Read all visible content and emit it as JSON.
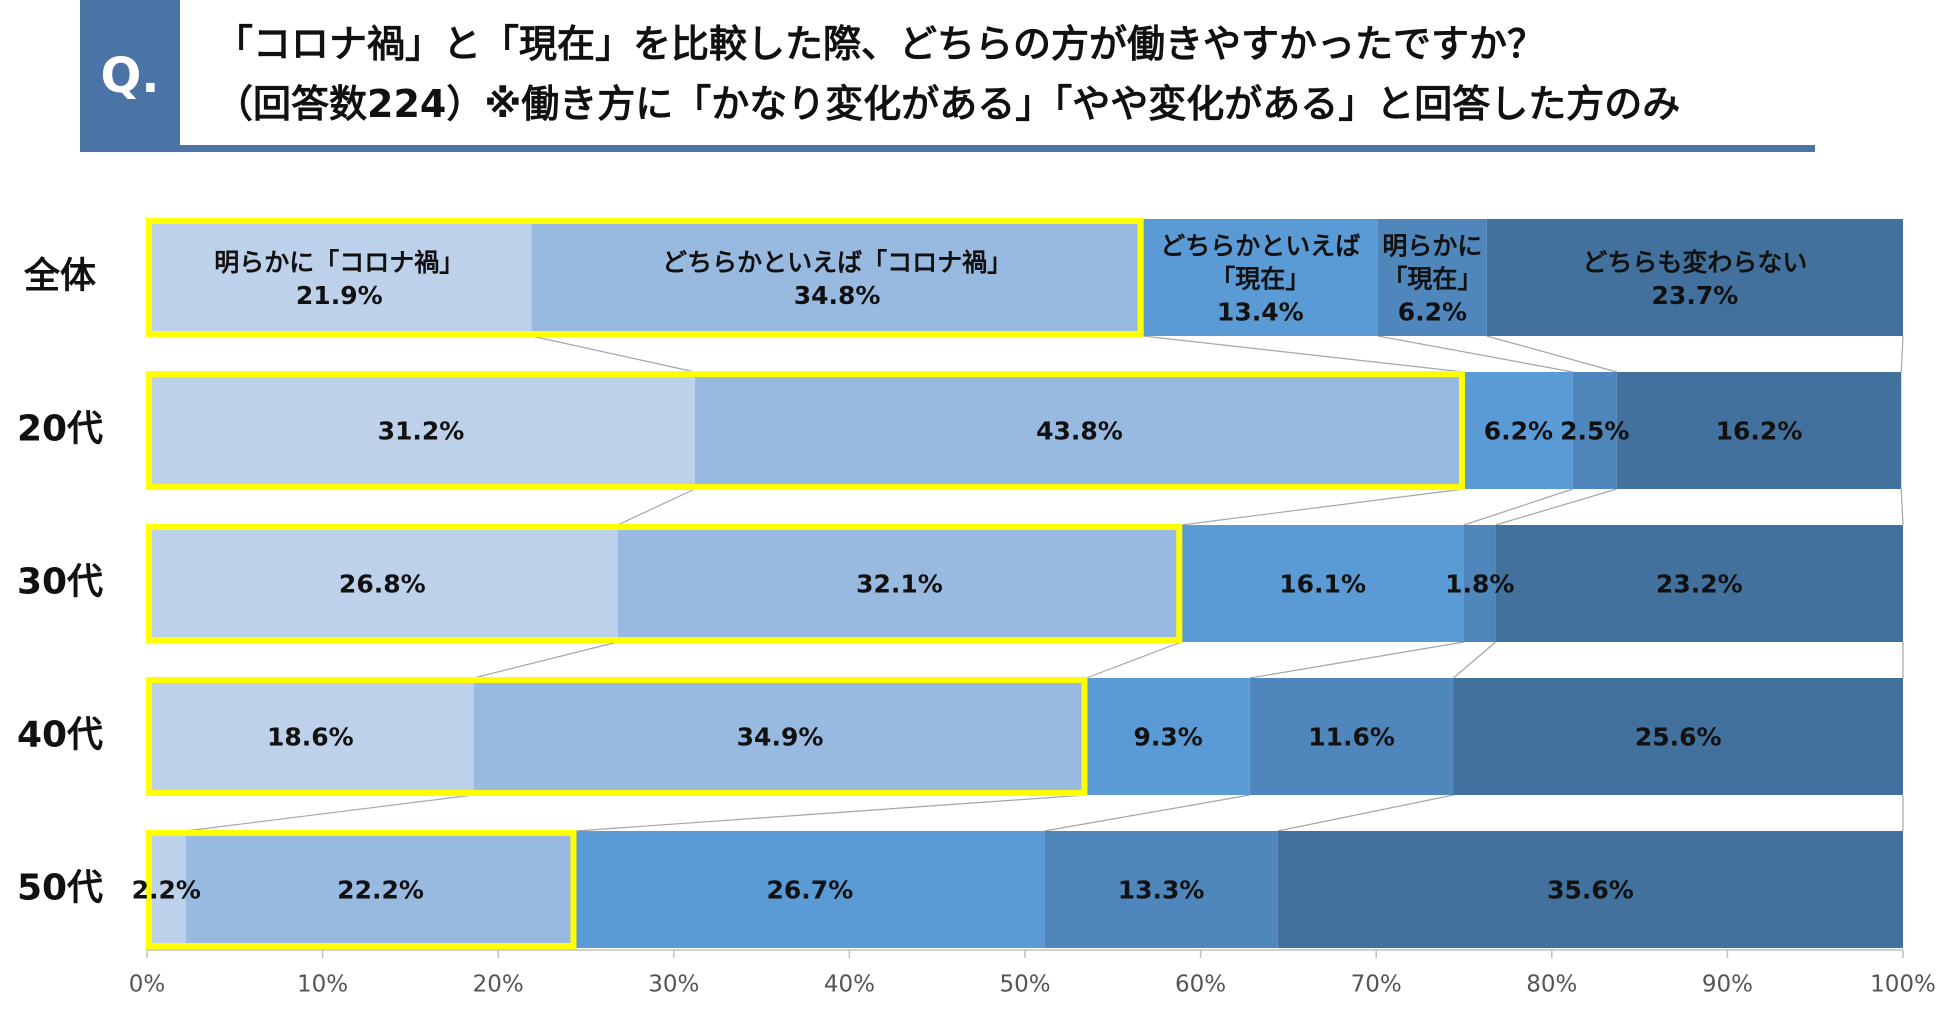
{
  "header": {
    "q_mark": "Q.",
    "title_line1": "「コロナ禍」と「現在」を比較した際、どちらの方が働きやすかったですか？",
    "title_line2": "（回答数224）※働き方に「かなり変化がある」「やや変化がある」と回答した方のみ"
  },
  "chart_data": {
    "type": "bar",
    "orientation": "horizontal-stacked-100",
    "title": "",
    "xlabel": "",
    "ylabel": "",
    "xlim": [
      0,
      100
    ],
    "x_ticks": [
      "0%",
      "10%",
      "20%",
      "30%",
      "40%",
      "50%",
      "60%",
      "70%",
      "80%",
      "90%",
      "100%"
    ],
    "categories": [
      "全体",
      "20代",
      "30代",
      "40代",
      "50代"
    ],
    "series": [
      {
        "name": "明らかに「コロナ禍」",
        "color": "#bdd1ea",
        "values": [
          21.9,
          31.2,
          26.8,
          18.6,
          2.2
        ]
      },
      {
        "name": "どちらかといえば「コロナ禍」",
        "color": "#99bae0",
        "values": [
          34.8,
          43.8,
          32.1,
          34.9,
          22.2
        ]
      },
      {
        "name": "どちらかといえば「現在」",
        "color": "#5b9bd5",
        "values": [
          13.4,
          6.2,
          16.1,
          9.3,
          26.7
        ]
      },
      {
        "name": "明らかに「現在」",
        "color": "#4f86bc",
        "values": [
          6.2,
          2.5,
          1.8,
          11.6,
          13.3
        ]
      },
      {
        "name": "どちらも変わらない",
        "color": "#41719c",
        "values": [
          23.7,
          16.2,
          23.2,
          25.6,
          35.6
        ]
      }
    ],
    "first_row_series_labels": [
      [
        "明らかに「コロナ禍」"
      ],
      [
        "どちらかといえば「コロナ禍」"
      ],
      [
        "どちらかといえば",
        "「現在」"
      ],
      [
        "明らかに",
        "「現在」"
      ],
      [
        "どちらも変わらない"
      ]
    ],
    "highlight": {
      "series_indices": [
        0,
        1
      ],
      "color": "#ffff00"
    },
    "grid": false,
    "legend": "none"
  }
}
